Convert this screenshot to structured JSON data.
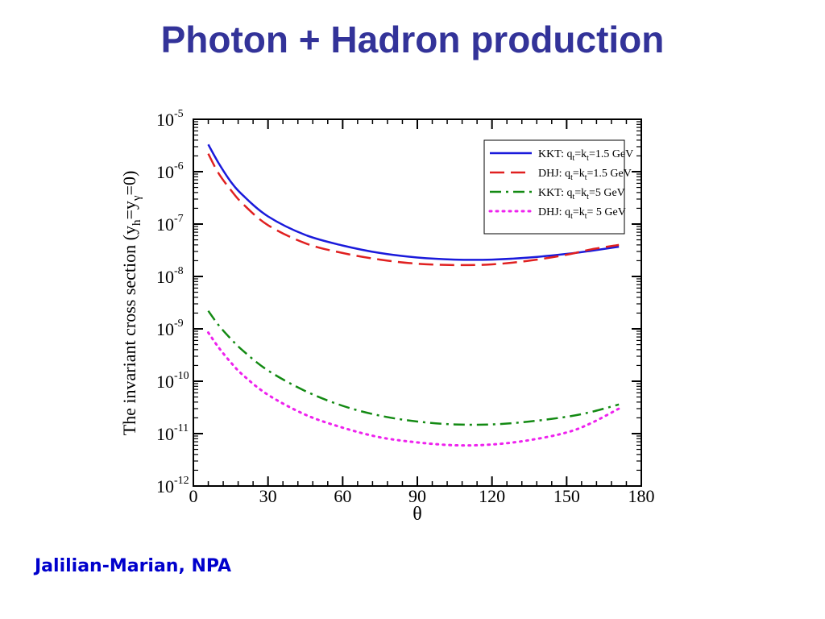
{
  "slide": {
    "title": "Photon + Hadron production",
    "citation": "Jalilian-Marian, NPA"
  },
  "colors": {
    "title": "#333399",
    "citation": "#0000cc"
  },
  "chart_data": {
    "type": "line",
    "xlabel": "θ",
    "ylabel": {
      "prefix": "The invariant cross section (y",
      "sub1": "h",
      "mid": "=y",
      "sub2": "γ",
      "suffix": "=0)"
    },
    "xlim": [
      0,
      180
    ],
    "ylim_log10": [
      -12,
      -5
    ],
    "yscale": "log",
    "xticks": [
      0,
      30,
      60,
      90,
      120,
      150,
      180
    ],
    "xtick_labels": [
      "0",
      "30",
      "60",
      "90",
      "120",
      "150",
      "180"
    ],
    "yticks_exp": [
      -5,
      -6,
      -7,
      -8,
      -9,
      -10,
      -11,
      -12
    ],
    "ytick_base": "10",
    "ytick_exp_labels": [
      "-5",
      "-6",
      "-7",
      "-8",
      "-9",
      "-10",
      "-11",
      "-12"
    ],
    "grid": false,
    "legend_position": "top-right",
    "series": [
      {
        "label": {
          "pre": "KKT: q",
          "s1": "t",
          "mid": "=k",
          "s2": "t",
          "post": "=1.5 GeV"
        },
        "color": "#1a1adb",
        "style": "solid",
        "x": [
          6,
          10,
          15,
          20,
          30,
          45,
          60,
          75,
          90,
          105,
          120,
          135,
          150,
          160,
          171
        ],
        "y": [
          3.3e-06,
          1.5e-06,
          6.5e-07,
          3.5e-07,
          1.4e-07,
          6.2e-08,
          3.9e-08,
          2.8e-08,
          2.3e-08,
          2.1e-08,
          2.1e-08,
          2.3e-08,
          2.7e-08,
          3.1e-08,
          3.7e-08
        ]
      },
      {
        "label": {
          "pre": "DHJ: q",
          "s1": "t",
          "mid": "=k",
          "s2": "t",
          "post": "=1.5 GeV"
        },
        "color": "#e02020",
        "style": "dashed",
        "x": [
          6,
          10,
          15,
          20,
          30,
          45,
          60,
          75,
          90,
          105,
          120,
          135,
          150,
          160,
          171
        ],
        "y": [
          2.2e-06,
          9.5e-07,
          4.5e-07,
          2.4e-07,
          9.5e-08,
          4.3e-08,
          2.8e-08,
          2.1e-08,
          1.75e-08,
          1.65e-08,
          1.7e-08,
          2e-08,
          2.6e-08,
          3.3e-08,
          4e-08
        ]
      },
      {
        "label": {
          "pre": "KKT: q",
          "s1": "t",
          "mid": "=k",
          "s2": "t",
          "post": "=5 GeV"
        },
        "color": "#138a13",
        "style": "dashdot",
        "x": [
          6,
          10,
          15,
          20,
          30,
          45,
          60,
          75,
          90,
          105,
          120,
          135,
          150,
          160,
          171
        ],
        "y": [
          2.2e-09,
          1.2e-09,
          6.5e-10,
          3.8e-10,
          1.6e-10,
          6.5e-11,
          3.4e-11,
          2.2e-11,
          1.7e-11,
          1.5e-11,
          1.5e-11,
          1.7e-11,
          2.1e-11,
          2.6e-11,
          3.6e-11
        ]
      },
      {
        "label": {
          "pre": "DHJ: q",
          "s1": "t",
          "mid": "=k",
          "s2": "t",
          "post": "= 5 GeV"
        },
        "color": "#ee22ee",
        "style": "dotted",
        "x": [
          6,
          10,
          15,
          20,
          30,
          45,
          60,
          75,
          90,
          105,
          120,
          135,
          150,
          160,
          171
        ],
        "y": [
          8.5e-10,
          4.5e-10,
          2.3e-10,
          1.3e-10,
          5.5e-11,
          2.3e-11,
          1.3e-11,
          8.5e-12,
          6.8e-12,
          6e-12,
          6.2e-12,
          7.5e-12,
          1.05e-11,
          1.6e-11,
          3e-11
        ]
      }
    ]
  }
}
